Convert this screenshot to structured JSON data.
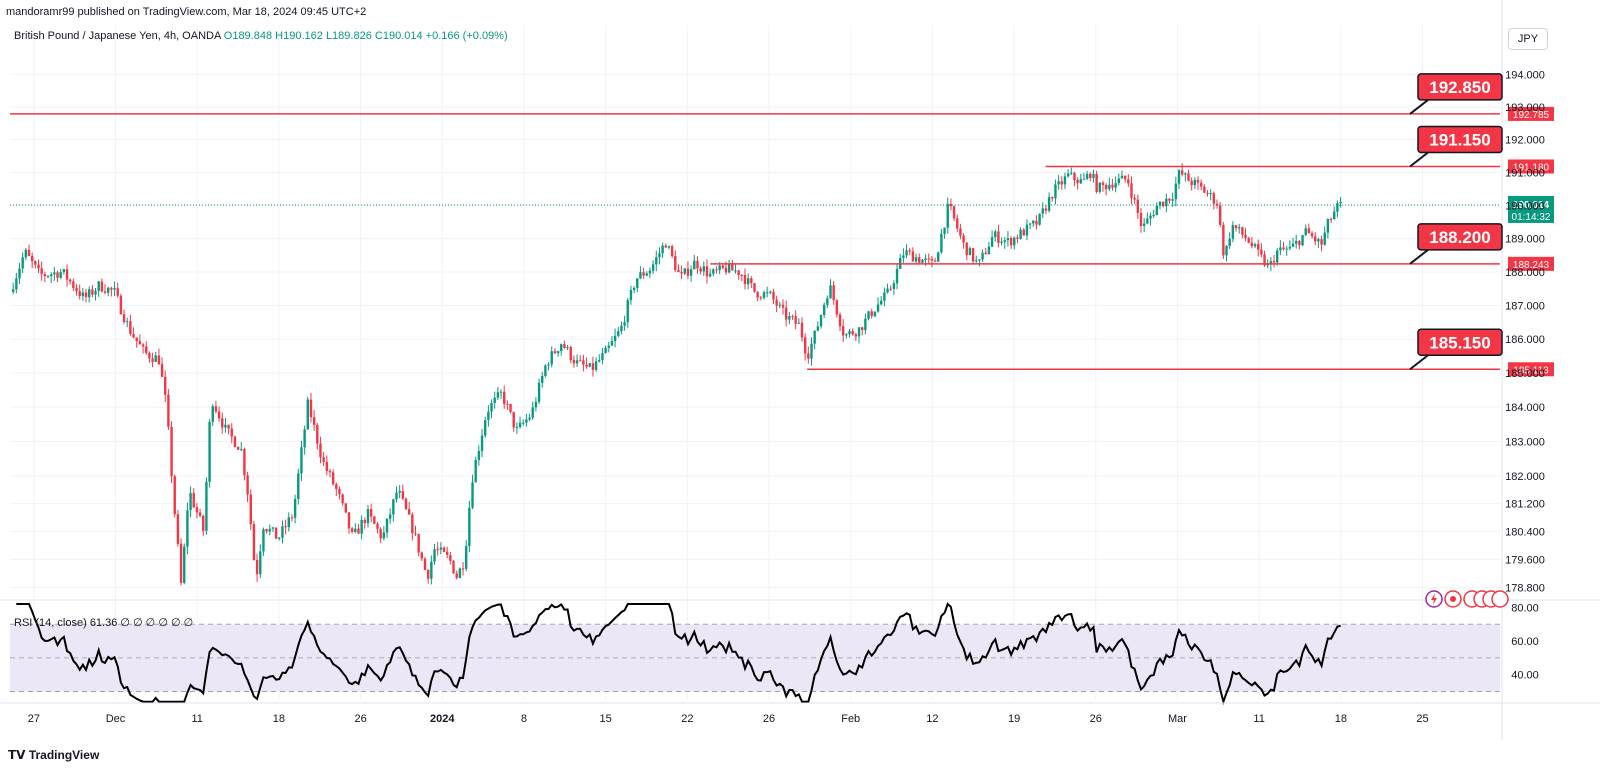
{
  "header": {
    "published": "mandoramr99 published on TradingView.com, Mar 18, 2024 09:45 UTC+2"
  },
  "legend": {
    "symbol": "British Pound / Japanese Yen, 4h, OANDA",
    "o": "O189.848",
    "h": "H190.162",
    "l": "L189.826",
    "c": "C190.014",
    "chg": "+0.166 (+0.09%)"
  },
  "currency": "JPY",
  "rsi": {
    "label": "RSI (14, close)",
    "value": "61.36",
    "placeholders": "∅ ∅ ∅ ∅ ∅ ∅",
    "scale_ticks": [
      "80.00",
      "60.00",
      "40.00"
    ],
    "ylim": [
      25,
      82
    ],
    "bands": [
      70,
      50,
      30
    ]
  },
  "footer": {
    "brand": "TradingView"
  },
  "colors": {
    "up": "#089981",
    "down": "#f23645",
    "level": "#f23645",
    "callout_bg": "#f23645",
    "current_price_bg": "#089981",
    "rsi_band": "#ece7f7"
  },
  "price_axis": {
    "ticks": [
      "194.000",
      "193.000",
      "192.000",
      "191.000",
      "190.000",
      "189.000",
      "188.000",
      "187.000",
      "186.000",
      "185.000",
      "184.000",
      "183.000",
      "182.000",
      "181.200",
      "180.400",
      "179.600",
      "178.800"
    ],
    "current": "190.014",
    "countdown": "01:14:32"
  },
  "time_axis": {
    "labels": [
      "27",
      "Dec",
      "11",
      "18",
      "26",
      "2024",
      "8",
      "15",
      "22",
      "26",
      "Feb",
      "12",
      "19",
      "26",
      "Mar",
      "11",
      "18",
      "25"
    ]
  },
  "levels": [
    {
      "price": 192.785,
      "badge": "192.785",
      "callout": "192.850",
      "full": true,
      "start": 0
    },
    {
      "price": 191.18,
      "badge": "191.180",
      "callout": "191.150",
      "full": false,
      "start": 0.695
    },
    {
      "price": 188.243,
      "badge": "188.243",
      "callout": "188.200",
      "full": false,
      "start": 0.47
    },
    {
      "price": 185.113,
      "badge": "185.113",
      "callout": "185.150",
      "full": false,
      "start": 0.535
    }
  ],
  "chart_data": {
    "type": "candlestick",
    "title": "British Pound / Japanese Yen, 4h, OANDA",
    "ylim": [
      178.5,
      194.6
    ],
    "scale": "log",
    "x_range": [
      "Nov 27, 2023",
      "Mar 25, 2024"
    ],
    "anchors": [
      [
        0,
        187.4
      ],
      [
        0.01,
        188.6
      ],
      [
        0.02,
        187.9
      ],
      [
        0.035,
        188.0
      ],
      [
        0.05,
        187.2
      ],
      [
        0.06,
        187.6
      ],
      [
        0.07,
        187.4
      ],
      [
        0.08,
        186.3
      ],
      [
        0.09,
        185.6
      ],
      [
        0.1,
        185.4
      ],
      [
        0.105,
        184.0
      ],
      [
        0.11,
        181.2
      ],
      [
        0.115,
        178.8
      ],
      [
        0.12,
        181.6
      ],
      [
        0.13,
        180.4
      ],
      [
        0.135,
        184.3
      ],
      [
        0.145,
        183.3
      ],
      [
        0.155,
        182.8
      ],
      [
        0.16,
        181.4
      ],
      [
        0.165,
        179.0
      ],
      [
        0.17,
        180.6
      ],
      [
        0.18,
        180.2
      ],
      [
        0.19,
        180.9
      ],
      [
        0.2,
        184.1
      ],
      [
        0.21,
        182.4
      ],
      [
        0.22,
        181.5
      ],
      [
        0.23,
        180.2
      ],
      [
        0.24,
        180.9
      ],
      [
        0.25,
        180.2
      ],
      [
        0.26,
        181.6
      ],
      [
        0.27,
        180.5
      ],
      [
        0.28,
        179.1
      ],
      [
        0.285,
        179.9
      ],
      [
        0.295,
        179.6
      ],
      [
        0.3,
        179.1
      ],
      [
        0.305,
        179.6
      ],
      [
        0.31,
        181.9
      ],
      [
        0.32,
        183.9
      ],
      [
        0.33,
        184.4
      ],
      [
        0.34,
        183.3
      ],
      [
        0.35,
        183.8
      ],
      [
        0.36,
        185.3
      ],
      [
        0.37,
        185.9
      ],
      [
        0.38,
        185.3
      ],
      [
        0.39,
        185.1
      ],
      [
        0.4,
        185.6
      ],
      [
        0.41,
        186.3
      ],
      [
        0.42,
        187.8
      ],
      [
        0.43,
        188.1
      ],
      [
        0.44,
        188.9
      ],
      [
        0.45,
        187.8
      ],
      [
        0.46,
        188.3
      ],
      [
        0.47,
        187.9
      ],
      [
        0.48,
        188.1
      ],
      [
        0.49,
        188.0
      ],
      [
        0.5,
        187.4
      ],
      [
        0.51,
        187.3
      ],
      [
        0.52,
        186.7
      ],
      [
        0.53,
        186.4
      ],
      [
        0.535,
        185.5
      ],
      [
        0.54,
        186.1
      ],
      [
        0.55,
        187.6
      ],
      [
        0.56,
        186.1
      ],
      [
        0.57,
        186.3
      ],
      [
        0.58,
        186.9
      ],
      [
        0.59,
        187.4
      ],
      [
        0.6,
        188.6
      ],
      [
        0.61,
        188.4
      ],
      [
        0.62,
        188.2
      ],
      [
        0.63,
        190.0
      ],
      [
        0.64,
        188.8
      ],
      [
        0.65,
        188.2
      ],
      [
        0.66,
        189.1
      ],
      [
        0.67,
        188.9
      ],
      [
        0.68,
        189.2
      ],
      [
        0.69,
        189.5
      ],
      [
        0.7,
        190.4
      ],
      [
        0.71,
        190.9
      ],
      [
        0.72,
        190.7
      ],
      [
        0.725,
        191.0
      ],
      [
        0.73,
        190.5
      ],
      [
        0.74,
        190.7
      ],
      [
        0.75,
        190.8
      ],
      [
        0.76,
        189.3
      ],
      [
        0.77,
        190.0
      ],
      [
        0.78,
        190.3
      ],
      [
        0.785,
        191.0
      ],
      [
        0.79,
        190.8
      ],
      [
        0.8,
        190.5
      ],
      [
        0.81,
        190.1
      ],
      [
        0.815,
        188.4
      ],
      [
        0.82,
        189.4
      ],
      [
        0.83,
        189.0
      ],
      [
        0.84,
        188.4
      ],
      [
        0.845,
        188.1
      ],
      [
        0.85,
        188.6
      ],
      [
        0.86,
        188.7
      ],
      [
        0.87,
        189.2
      ],
      [
        0.88,
        188.8
      ],
      [
        0.885,
        189.5
      ],
      [
        0.89,
        189.9
      ],
      [
        0.893,
        190.0
      ]
    ]
  }
}
